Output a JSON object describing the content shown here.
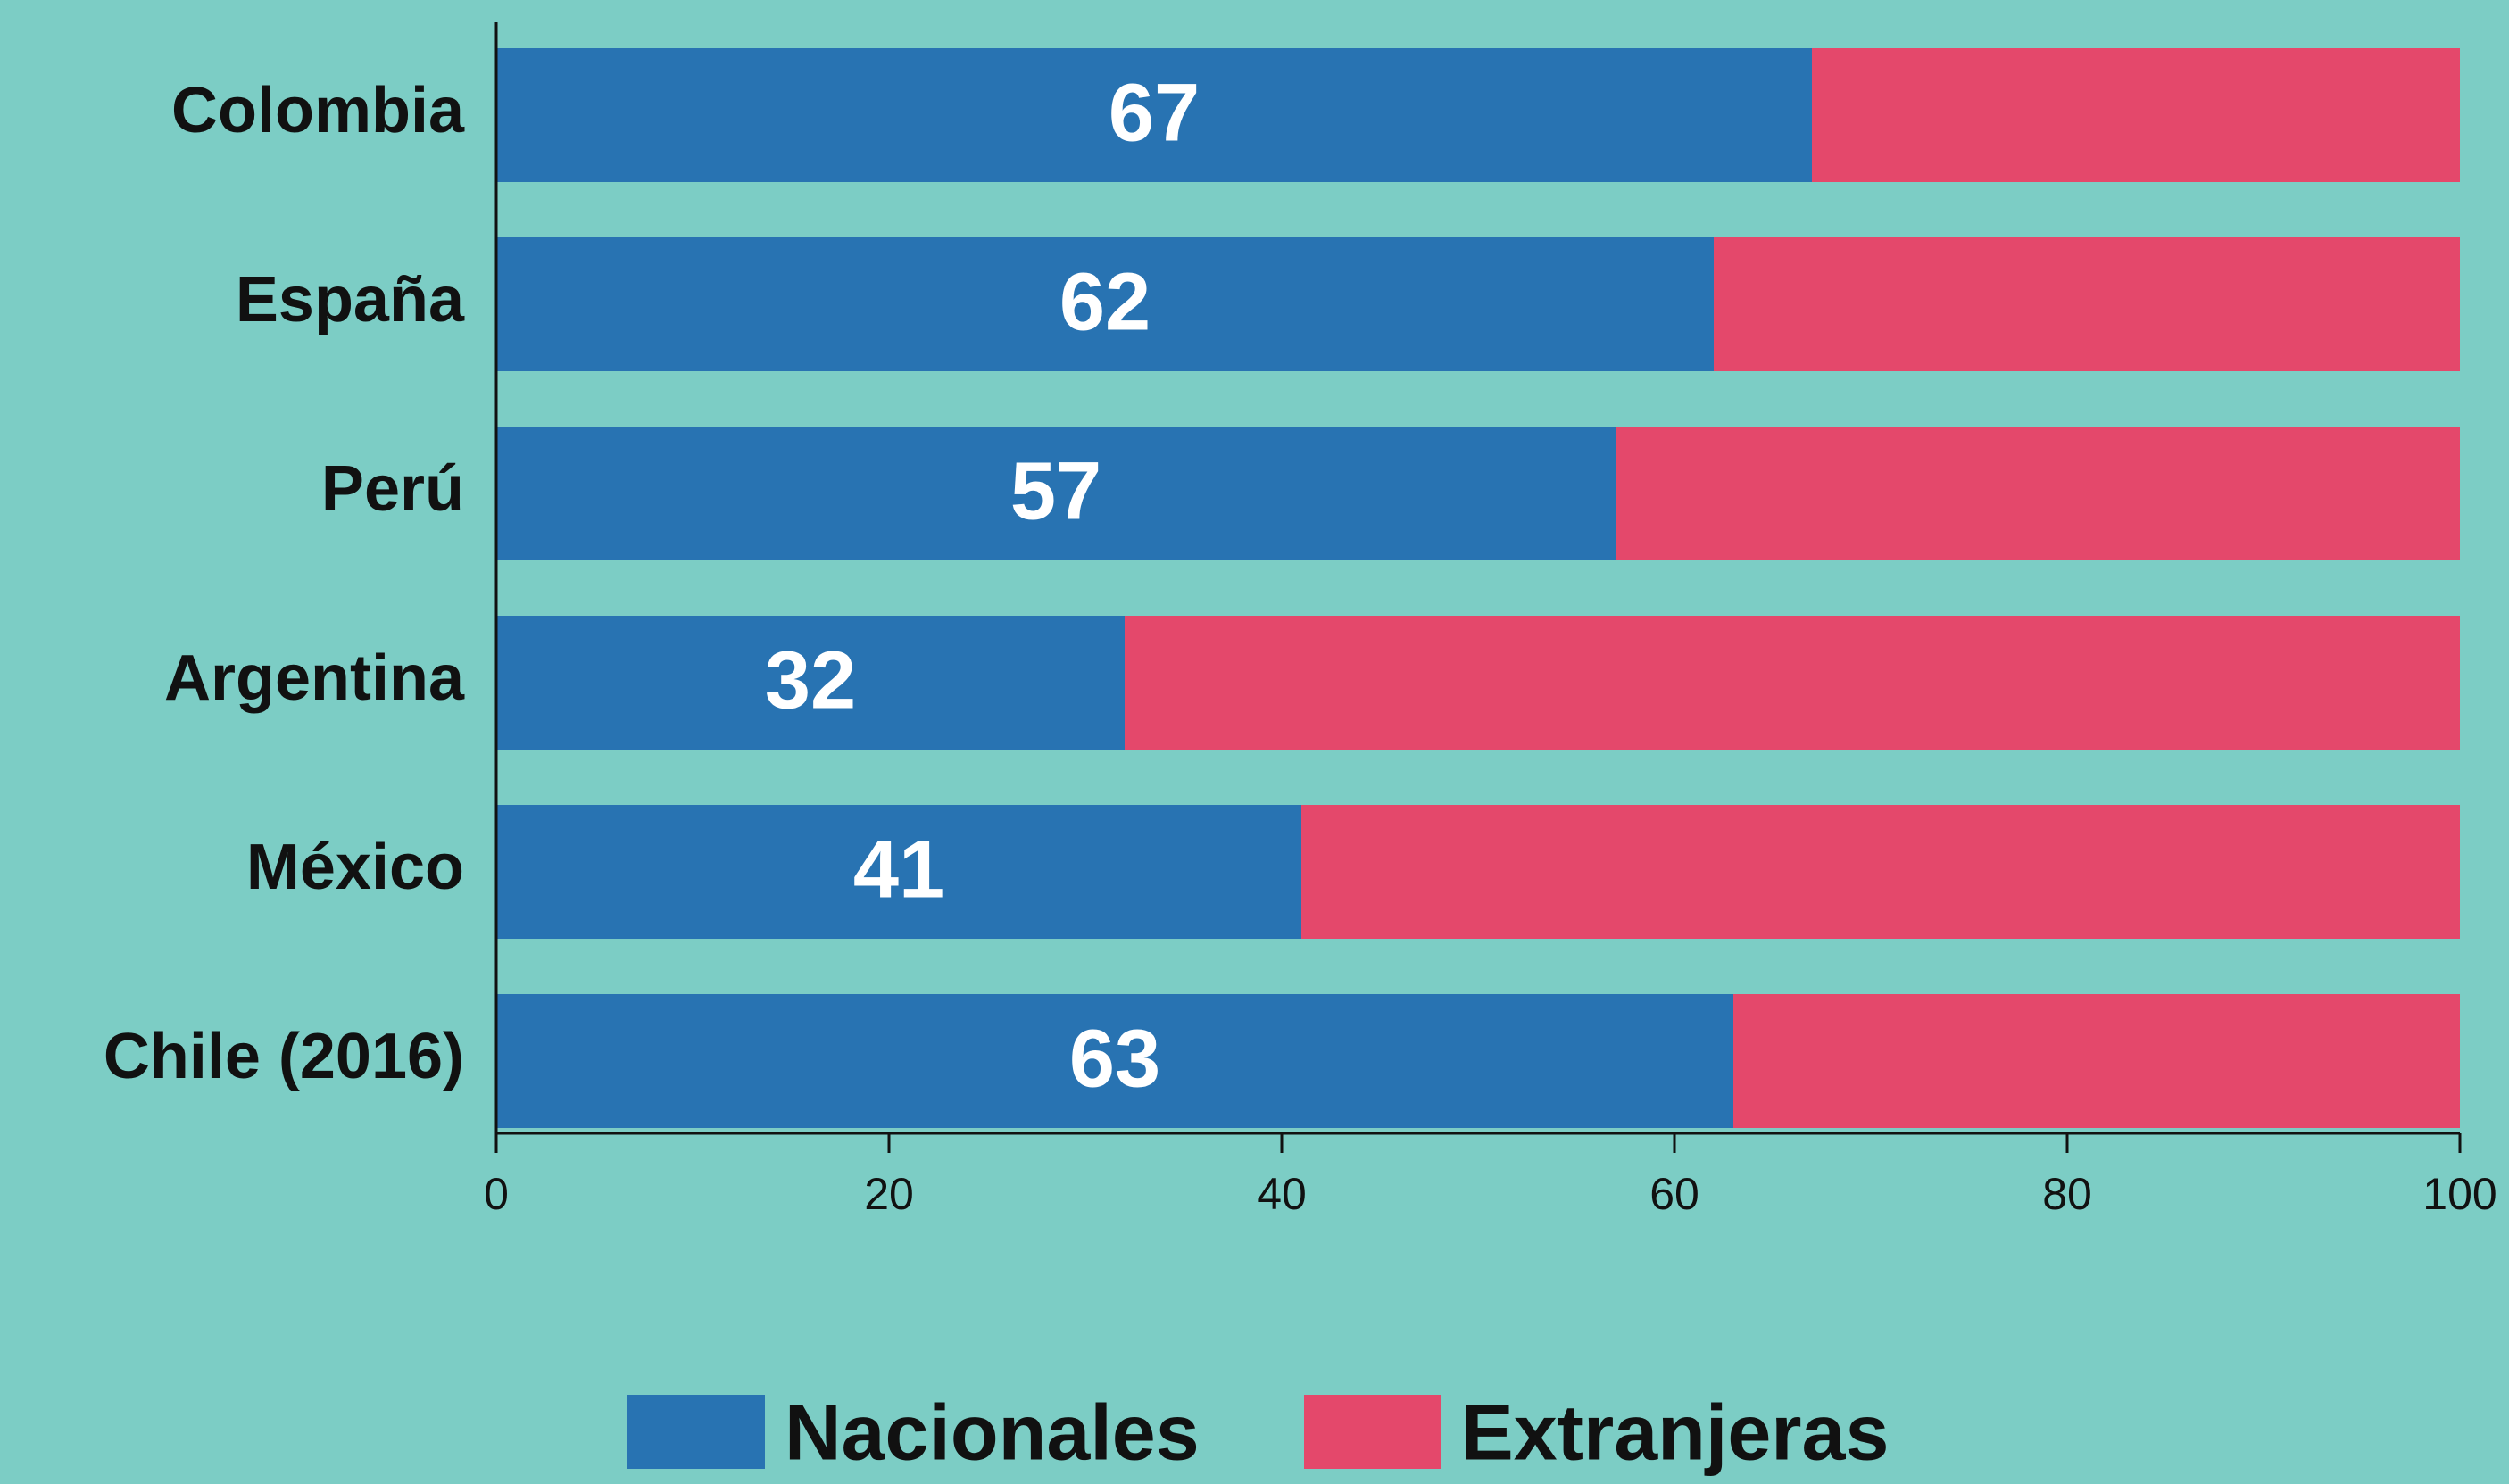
{
  "chart_data": {
    "type": "stacked-bar-horizontal",
    "categories": [
      "Colombia",
      "España",
      "Perú",
      "Argentina",
      "México",
      "Chile (2016)"
    ],
    "series": [
      {
        "name": "Nacionales",
        "color": "#2873b2",
        "values": [
          67,
          62,
          57,
          32,
          41,
          63
        ]
      },
      {
        "name": "Extranjeras",
        "color": "#e4486b",
        "values": [
          33,
          38,
          43,
          68,
          59,
          37
        ]
      }
    ],
    "xlim": [
      0,
      100
    ],
    "xticks": [
      0,
      20,
      40,
      60,
      80,
      100
    ],
    "data_labels_series": "Nacionales",
    "legend": "bottom",
    "background": "#7ccdc5"
  }
}
